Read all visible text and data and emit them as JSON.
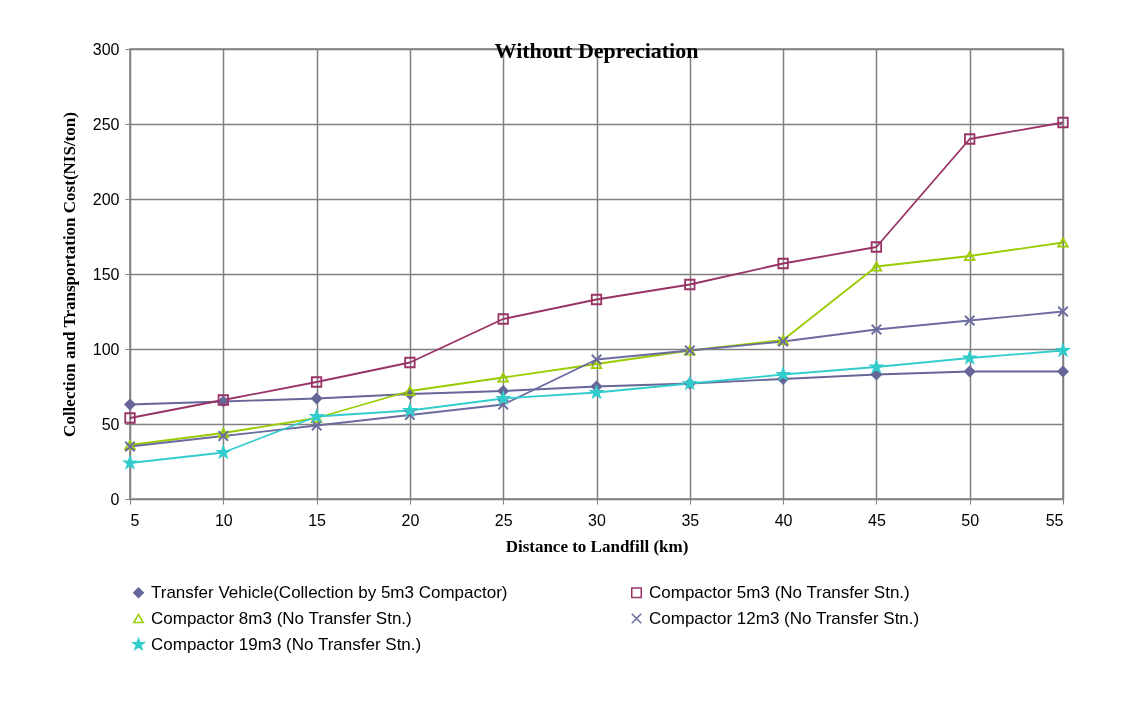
{
  "chart_data": {
    "type": "line",
    "title": "Without Depreciation",
    "xlabel": "Distance to Landfill  (km)",
    "ylabel": "Collection and Transportation Cost(NIS/ton)",
    "x": [
      5,
      10,
      15,
      20,
      25,
      30,
      35,
      40,
      45,
      50,
      55
    ],
    "xlim": [
      5,
      55
    ],
    "xticks": [
      5,
      10,
      15,
      20,
      25,
      30,
      35,
      40,
      45,
      50,
      55
    ],
    "ylim": [
      0,
      300
    ],
    "yticks": [
      0,
      50,
      100,
      150,
      200,
      250,
      300
    ],
    "grid": true,
    "legend": "bottom",
    "line_style": "solid",
    "series": [
      {
        "name": "Transfer Vehicle(Collection by 5m3 Compactor)",
        "color": "#666699",
        "marker": "diamond",
        "values": [
          63,
          65,
          67,
          70,
          72,
          75,
          77,
          80,
          83,
          85,
          85
        ]
      },
      {
        "name": "Compactor 5m3 (No Transfer Stn.)",
        "color": "#993366",
        "marker": "square",
        "values": [
          54,
          66,
          78,
          91,
          120,
          133,
          143,
          157,
          168,
          240,
          251
        ]
      },
      {
        "name": "Compactor 8m3 (No Transfer Stn.)",
        "color": "#99cc00",
        "marker": "triangle",
        "values": [
          36,
          44,
          54,
          72,
          81,
          90,
          99,
          106,
          155,
          162,
          171
        ]
      },
      {
        "name": "Compactor 12m3 (No Transfer Stn.)",
        "color": "#6b6b9f",
        "marker": "cross",
        "values": [
          35,
          42,
          49,
          56,
          63,
          93,
          99,
          105,
          113,
          119,
          125
        ]
      },
      {
        "name": "Compactor 19m3 (No Transfer Stn.)",
        "color": "#33cccc",
        "marker": "star",
        "values": [
          24,
          31,
          55,
          59,
          67,
          71,
          77,
          83,
          88,
          94,
          99
        ]
      }
    ]
  }
}
